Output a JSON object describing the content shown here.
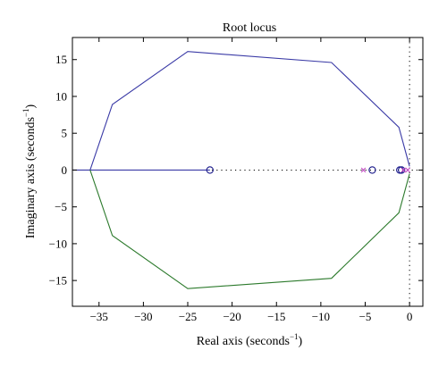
{
  "chart_data": {
    "type": "line",
    "title": "Root locus",
    "xlabel": "Real axis (seconds",
    "ylabel": "Imaginary axis (seconds",
    "label_superscript": "−1",
    "xlim": [
      -38,
      1.5
    ],
    "ylim": [
      -18.5,
      18
    ],
    "xticks": [
      -35,
      -30,
      -25,
      -20,
      -15,
      -10,
      -5,
      0
    ],
    "yticks": [
      -15,
      -10,
      -5,
      0,
      5,
      10,
      15
    ],
    "grid": false,
    "series": [
      {
        "color": "#3a3aa6",
        "points": [
          [
            -38,
            0
          ],
          [
            -36,
            0
          ],
          [
            -22.5,
            0
          ]
        ],
        "comment": ""
      },
      {
        "color": "#3a3aa6",
        "points": [
          [
            -36,
            0
          ],
          [
            -33.5,
            8.9
          ],
          [
            -25,
            16.1
          ],
          [
            -8.8,
            14.6
          ],
          [
            -1.2,
            5.8
          ],
          [
            0,
            0.5
          ]
        ]
      },
      {
        "color": "#2c7a2c",
        "points": [
          [
            -36,
            0
          ],
          [
            -33.5,
            -8.9
          ],
          [
            -25,
            -16.1
          ],
          [
            -8.8,
            -14.7
          ],
          [
            -1.2,
            -5.8
          ],
          [
            0,
            -0.5
          ]
        ]
      }
    ],
    "zeros": [
      [
        -22.5,
        0
      ],
      [
        -4.2,
        0
      ],
      [
        -1.1,
        0
      ],
      [
        -0.9,
        0
      ]
    ],
    "poles": [
      [
        -5.2,
        0
      ],
      [
        -0.7,
        0
      ],
      [
        -0.2,
        0
      ]
    ],
    "zero_color": "#1a1a8a",
    "pole_color": "#c040c0",
    "reference_lines": {
      "real_axis_dotted": true,
      "imag_axis_dotted_x": 0
    }
  }
}
